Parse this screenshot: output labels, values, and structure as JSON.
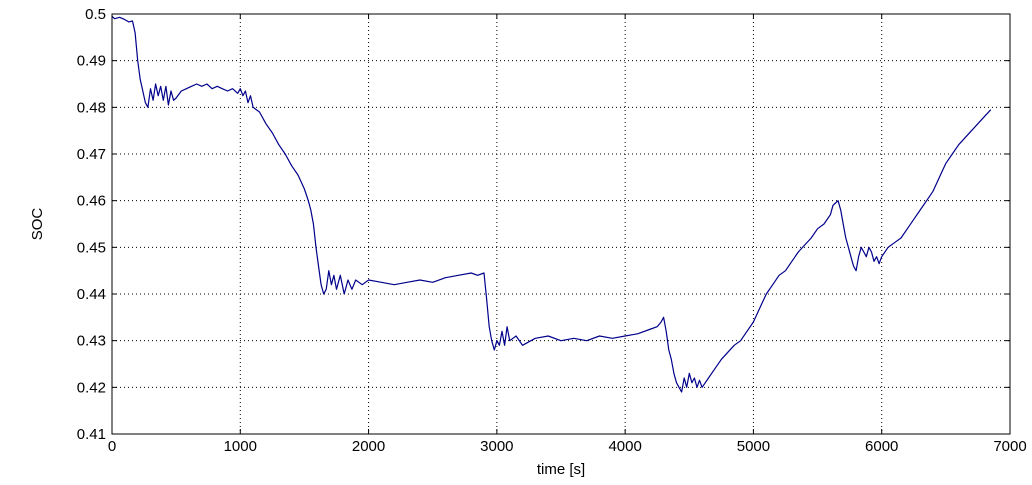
{
  "chart_data": {
    "type": "line",
    "title": "",
    "xlabel": "time [s]",
    "ylabel": "SOC",
    "xlim": [
      0,
      7000
    ],
    "ylim": [
      0.41,
      0.5
    ],
    "xticks": [
      0,
      1000,
      2000,
      3000,
      4000,
      5000,
      6000,
      7000
    ],
    "xtick_labels": [
      "0",
      "1000",
      "2000",
      "3000",
      "4000",
      "5000",
      "6000",
      "7000"
    ],
    "yticks": [
      0.41,
      0.42,
      0.43,
      0.44,
      0.45,
      0.46,
      0.47,
      0.48,
      0.49,
      0.5
    ],
    "ytick_labels": [
      "0.41",
      "0.42",
      "0.43",
      "0.44",
      "0.45",
      "0.46",
      "0.47",
      "0.48",
      "0.49",
      "0.5"
    ],
    "grid": true,
    "grid_style": "dotted",
    "line_color": "#00008b",
    "series": [
      {
        "x": [
          0,
          20,
          60,
          100,
          130,
          160,
          180,
          200,
          220,
          240,
          260,
          280,
          300,
          320,
          340,
          360,
          380,
          400,
          420,
          440,
          460,
          480,
          500,
          540,
          580,
          620,
          660,
          700,
          740,
          780,
          820,
          860,
          900,
          940,
          980,
          1000,
          1020,
          1040,
          1060,
          1080,
          1100,
          1150,
          1200,
          1250,
          1300,
          1350,
          1400,
          1450,
          1500,
          1530,
          1550,
          1570,
          1590,
          1610,
          1630,
          1650,
          1670,
          1690,
          1710,
          1730,
          1750,
          1780,
          1810,
          1840,
          1870,
          1900,
          1950,
          2000,
          2100,
          2200,
          2300,
          2400,
          2500,
          2600,
          2700,
          2800,
          2850,
          2900,
          2920,
          2940,
          2960,
          2980,
          3000,
          3020,
          3040,
          3060,
          3080,
          3100,
          3150,
          3200,
          3300,
          3400,
          3500,
          3600,
          3700,
          3800,
          3900,
          4000,
          4100,
          4200,
          4250,
          4280,
          4300,
          4320,
          4340,
          4360,
          4380,
          4400,
          4420,
          4440,
          4460,
          4480,
          4500,
          4520,
          4540,
          4560,
          4580,
          4600,
          4650,
          4700,
          4750,
          4800,
          4850,
          4900,
          4950,
          5000,
          5050,
          5100,
          5150,
          5200,
          5250,
          5300,
          5350,
          5400,
          5450,
          5500,
          5550,
          5600,
          5620,
          5640,
          5660,
          5680,
          5700,
          5720,
          5740,
          5760,
          5780,
          5800,
          5820,
          5840,
          5860,
          5880,
          5900,
          5920,
          5940,
          5960,
          5980,
          6000,
          6050,
          6100,
          6150,
          6200,
          6250,
          6300,
          6350,
          6400,
          6450,
          6500,
          6550,
          6600,
          6650,
          6700,
          6750,
          6800,
          6850
        ],
        "y": [
          0.4995,
          0.499,
          0.4993,
          0.4988,
          0.4983,
          0.4985,
          0.496,
          0.49,
          0.486,
          0.4835,
          0.481,
          0.48,
          0.484,
          0.4815,
          0.485,
          0.4825,
          0.4845,
          0.4815,
          0.4845,
          0.4805,
          0.4835,
          0.4815,
          0.482,
          0.4835,
          0.484,
          0.4845,
          0.485,
          0.4845,
          0.485,
          0.484,
          0.4845,
          0.484,
          0.4835,
          0.484,
          0.483,
          0.484,
          0.4825,
          0.4835,
          0.481,
          0.4825,
          0.48,
          0.479,
          0.4765,
          0.4745,
          0.472,
          0.47,
          0.4675,
          0.4655,
          0.4625,
          0.46,
          0.458,
          0.455,
          0.45,
          0.446,
          0.442,
          0.44,
          0.441,
          0.445,
          0.442,
          0.444,
          0.441,
          0.444,
          0.44,
          0.443,
          0.441,
          0.443,
          0.442,
          0.443,
          0.4425,
          0.442,
          0.4425,
          0.443,
          0.4425,
          0.4435,
          0.444,
          0.4445,
          0.444,
          0.4445,
          0.439,
          0.433,
          0.43,
          0.428,
          0.43,
          0.429,
          0.432,
          0.429,
          0.433,
          0.43,
          0.431,
          0.429,
          0.4305,
          0.431,
          0.43,
          0.4305,
          0.43,
          0.431,
          0.4305,
          0.431,
          0.4315,
          0.4325,
          0.433,
          0.434,
          0.435,
          0.432,
          0.428,
          0.426,
          0.423,
          0.421,
          0.42,
          0.419,
          0.422,
          0.42,
          0.423,
          0.421,
          0.422,
          0.42,
          0.4215,
          0.42,
          0.422,
          0.424,
          0.426,
          0.4275,
          0.429,
          0.43,
          0.432,
          0.434,
          0.437,
          0.44,
          0.442,
          0.444,
          0.445,
          0.447,
          0.449,
          0.4505,
          0.452,
          0.454,
          0.455,
          0.457,
          0.459,
          0.4595,
          0.46,
          0.458,
          0.455,
          0.452,
          0.45,
          0.448,
          0.446,
          0.445,
          0.448,
          0.45,
          0.449,
          0.448,
          0.45,
          0.449,
          0.447,
          0.448,
          0.4465,
          0.448,
          0.45,
          0.451,
          0.452,
          0.454,
          0.456,
          0.458,
          0.46,
          0.462,
          0.465,
          0.468,
          0.47,
          0.472,
          0.4735,
          0.475,
          0.4765,
          0.478,
          0.4795
        ]
      }
    ]
  }
}
